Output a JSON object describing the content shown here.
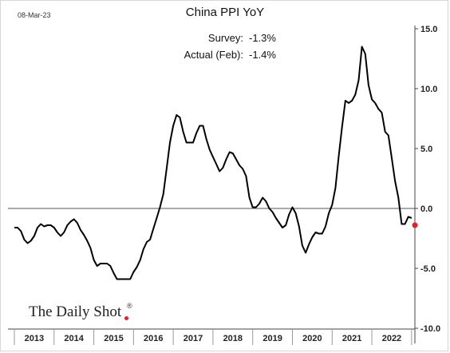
{
  "header": {
    "date": "08-Mar-23"
  },
  "annotations": {
    "survey_label": "Survey:",
    "survey_value": "-1.3%",
    "actual_label": "Actual (Feb):",
    "actual_value": "-1.4%"
  },
  "logo": {
    "text": "The Daily Shot",
    "mark": "®"
  },
  "colors": {
    "line": "#000000",
    "highlight": "#e0202a",
    "zero_line": "#555555",
    "axis": "#444444"
  },
  "chart_data": {
    "type": "line",
    "title": "China PPI YoY",
    "xlabel": "",
    "ylabel": "",
    "ylim": [
      -10,
      15
    ],
    "y_ticks": [
      -10,
      -5,
      0,
      5,
      10,
      15
    ],
    "y_tick_labels": [
      "-10.0",
      "-5.0",
      "0.0",
      "5.0",
      "10.0",
      "15.0"
    ],
    "x_ticks": [
      "2013",
      "2014",
      "2015",
      "2016",
      "2017",
      "2018",
      "2019",
      "2020",
      "2021",
      "2022"
    ],
    "start": "2013-01",
    "end": "2023-02",
    "grid": false,
    "y_axis_position": "right",
    "series": [
      {
        "x": [
          "2013-01",
          "2013-02",
          "2013-03",
          "2013-04",
          "2013-05",
          "2013-06",
          "2013-07",
          "2013-08",
          "2013-09",
          "2013-10",
          "2013-11",
          "2013-12",
          "2014-01",
          "2014-02",
          "2014-03",
          "2014-04",
          "2014-05",
          "2014-06",
          "2014-07",
          "2014-08",
          "2014-09",
          "2014-10",
          "2014-11",
          "2014-12",
          "2015-01",
          "2015-02",
          "2015-03",
          "2015-04",
          "2015-05",
          "2015-06",
          "2015-07",
          "2015-08",
          "2015-09",
          "2015-10",
          "2015-11",
          "2015-12",
          "2016-01",
          "2016-02",
          "2016-03",
          "2016-04",
          "2016-05",
          "2016-06",
          "2016-07",
          "2016-08",
          "2016-09",
          "2016-10",
          "2016-11",
          "2016-12",
          "2017-01",
          "2017-02",
          "2017-03",
          "2017-04",
          "2017-05",
          "2017-06",
          "2017-07",
          "2017-08",
          "2017-09",
          "2017-10",
          "2017-11",
          "2017-12",
          "2018-01",
          "2018-02",
          "2018-03",
          "2018-04",
          "2018-05",
          "2018-06",
          "2018-07",
          "2018-08",
          "2018-09",
          "2018-10",
          "2018-11",
          "2018-12",
          "2019-01",
          "2019-02",
          "2019-03",
          "2019-04",
          "2019-05",
          "2019-06",
          "2019-07",
          "2019-08",
          "2019-09",
          "2019-10",
          "2019-11",
          "2019-12",
          "2020-01",
          "2020-02",
          "2020-03",
          "2020-04",
          "2020-05",
          "2020-06",
          "2020-07",
          "2020-08",
          "2020-09",
          "2020-10",
          "2020-11",
          "2020-12",
          "2021-01",
          "2021-02",
          "2021-03",
          "2021-04",
          "2021-05",
          "2021-06",
          "2021-07",
          "2021-08",
          "2021-09",
          "2021-10",
          "2021-11",
          "2021-12",
          "2022-01",
          "2022-02",
          "2022-03",
          "2022-04",
          "2022-05",
          "2022-06",
          "2022-07",
          "2022-08",
          "2022-09",
          "2022-10",
          "2022-11",
          "2022-12",
          "2023-01"
        ],
        "values": [
          -1.6,
          -1.6,
          -1.9,
          -2.6,
          -2.9,
          -2.7,
          -2.3,
          -1.6,
          -1.3,
          -1.5,
          -1.4,
          -1.4,
          -1.6,
          -2.0,
          -2.3,
          -2.0,
          -1.4,
          -1.1,
          -0.9,
          -1.2,
          -1.8,
          -2.2,
          -2.7,
          -3.3,
          -4.3,
          -4.8,
          -4.6,
          -4.6,
          -4.6,
          -4.8,
          -5.4,
          -5.9,
          -5.9,
          -5.9,
          -5.9,
          -5.9,
          -5.3,
          -4.9,
          -4.3,
          -3.4,
          -2.8,
          -2.6,
          -1.7,
          -0.8,
          0.1,
          1.2,
          3.3,
          5.5,
          6.9,
          7.8,
          7.6,
          6.4,
          5.5,
          5.5,
          5.5,
          6.3,
          6.9,
          6.9,
          5.8,
          4.9,
          4.3,
          3.7,
          3.1,
          3.4,
          4.1,
          4.7,
          4.6,
          4.1,
          3.6,
          3.3,
          2.7,
          0.9,
          0.1,
          0.1,
          0.4,
          0.9,
          0.6,
          0.0,
          -0.3,
          -0.8,
          -1.2,
          -1.6,
          -1.4,
          -0.5,
          0.1,
          -0.4,
          -1.5,
          -3.1,
          -3.7,
          -3.0,
          -2.4,
          -2.0,
          -2.1,
          -2.1,
          -1.5,
          -0.4,
          0.3,
          1.7,
          4.4,
          6.8,
          9.0,
          8.8,
          9.0,
          9.5,
          10.7,
          13.5,
          12.9,
          10.3,
          9.1,
          8.8,
          8.3,
          8.0,
          6.4,
          6.1,
          4.2,
          2.3,
          0.9,
          -1.3,
          -1.3,
          -0.7,
          -0.8
        ]
      },
      {
        "x": [
          "2023-02"
        ],
        "values": [
          -1.4
        ]
      }
    ]
  }
}
